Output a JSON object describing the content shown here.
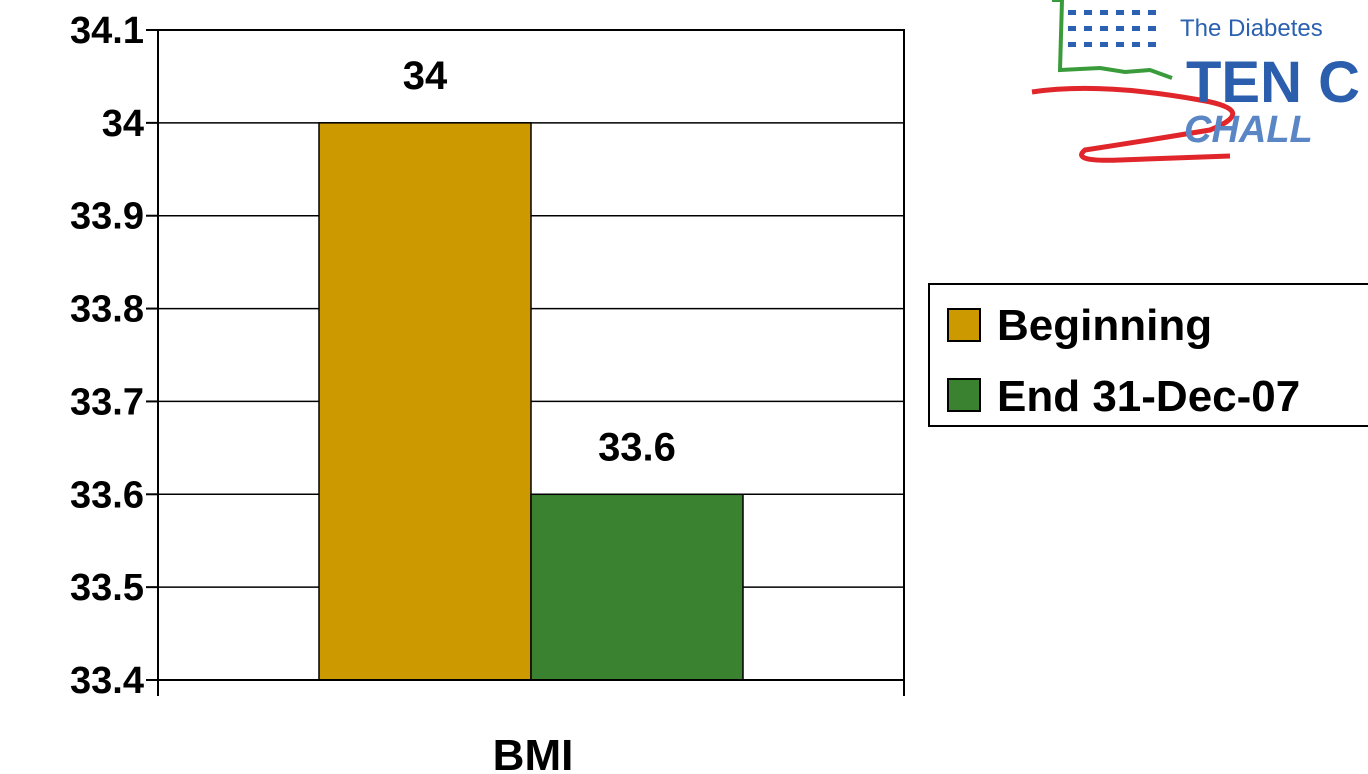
{
  "chart_data": {
    "type": "bar",
    "categories": [
      "BMI"
    ],
    "series": [
      {
        "name": "Beginning",
        "values": [
          34
        ],
        "color": "#cc9900"
      },
      {
        "name": "End 31-Dec-07",
        "values": [
          33.6
        ],
        "color": "#3b8230"
      }
    ],
    "data_labels": [
      "34",
      "33.6"
    ],
    "yticks": [
      "33.4",
      "33.5",
      "33.6",
      "33.7",
      "33.8",
      "33.9",
      "34",
      "34.1"
    ],
    "ylim": [
      33.4,
      34.1
    ],
    "grid": true,
    "legend_position": "right",
    "title": "",
    "xlabel": "",
    "ylabel": ""
  },
  "logo": {
    "line1": "The Diabetes",
    "line2": "TEN C",
    "line3": "CHALL"
  }
}
